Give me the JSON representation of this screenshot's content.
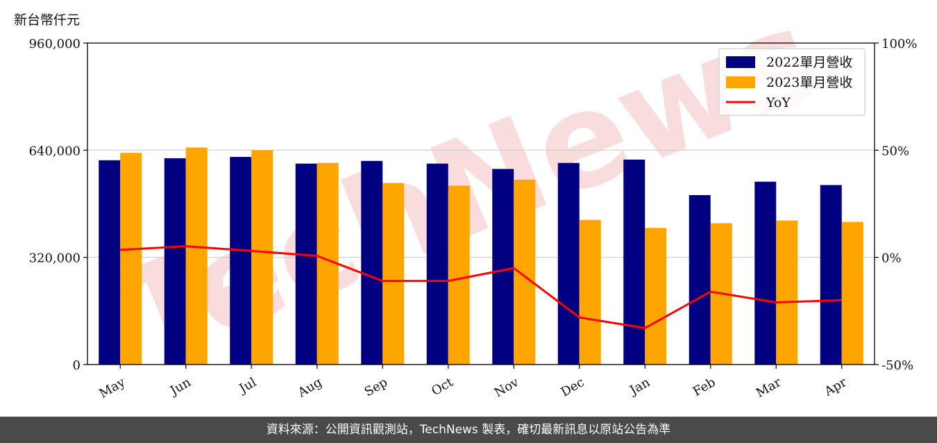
{
  "unit_label": "新台幣仟元",
  "footer": "資料來源：公開資訊觀測站，TechNews 製表，確切最新訊息以原站公告為準",
  "watermark": "TechNews",
  "colors": {
    "series1": "#000080",
    "series2": "#FFA500",
    "yoy": "#FF0000",
    "grid": "#cccccc",
    "watermark": "#f0a0a0"
  },
  "chart_data": {
    "type": "bar",
    "categories": [
      "May",
      "Jun",
      "Jul",
      "Aug",
      "Sep",
      "Oct",
      "Nov",
      "Dec",
      "Jan",
      "Feb",
      "Mar",
      "Apr"
    ],
    "series": [
      {
        "name": "2022單月營收",
        "values": [
          610000,
          616000,
          620000,
          600000,
          608000,
          600000,
          584000,
          602000,
          612000,
          506000,
          546000,
          536000
        ]
      },
      {
        "name": "2023單月營收",
        "values": [
          632000,
          648000,
          640000,
          602000,
          542000,
          534000,
          552000,
          432000,
          408000,
          422000,
          430000,
          426000
        ]
      }
    ],
    "line_series": {
      "name": "YoY",
      "axis": "right",
      "values": [
        3.5,
        5.2,
        3.0,
        0.7,
        -11,
        -11,
        -5,
        -28,
        -33,
        -16,
        -21,
        -20
      ]
    },
    "ylim": [
      0,
      960000
    ],
    "yticks": [
      "0",
      "320,000",
      "640,000",
      "960,000"
    ],
    "ytick_values": [
      0,
      320000,
      640000,
      960000
    ],
    "y2lim": [
      -50,
      100
    ],
    "y2ticks": [
      "-50%",
      "0%",
      "50%",
      "100%"
    ],
    "y2tick_values": [
      -50,
      0,
      50,
      100
    ],
    "grid": "horizontal",
    "legend": "top-right"
  }
}
